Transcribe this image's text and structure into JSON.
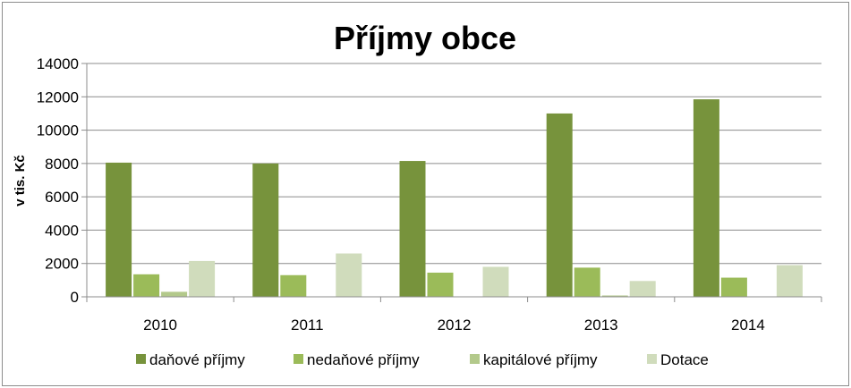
{
  "chart_data": {
    "type": "bar",
    "title": "Příjmy obce",
    "ylabel": "v tis. Kč",
    "xlabel": "",
    "ylim": [
      0,
      14000
    ],
    "yticks": [
      0,
      2000,
      4000,
      6000,
      8000,
      10000,
      12000,
      14000
    ],
    "grid": true,
    "legend_position": "bottom",
    "categories": [
      "2010",
      "2011",
      "2012",
      "2013",
      "2014"
    ],
    "series": [
      {
        "name": "daňové příjmy",
        "color": "#77933c",
        "values": [
          8050,
          8000,
          8150,
          11000,
          11850
        ]
      },
      {
        "name": "nedaňové příjmy",
        "color": "#9bbb59",
        "values": [
          1350,
          1300,
          1450,
          1750,
          1150
        ]
      },
      {
        "name": "kapitálové příjmy",
        "color": "#b3c98b",
        "values": [
          300,
          0,
          0,
          80,
          0
        ]
      },
      {
        "name": "Dotace",
        "color": "#d0dcbc",
        "values": [
          2150,
          2600,
          1800,
          950,
          1900
        ]
      }
    ]
  }
}
